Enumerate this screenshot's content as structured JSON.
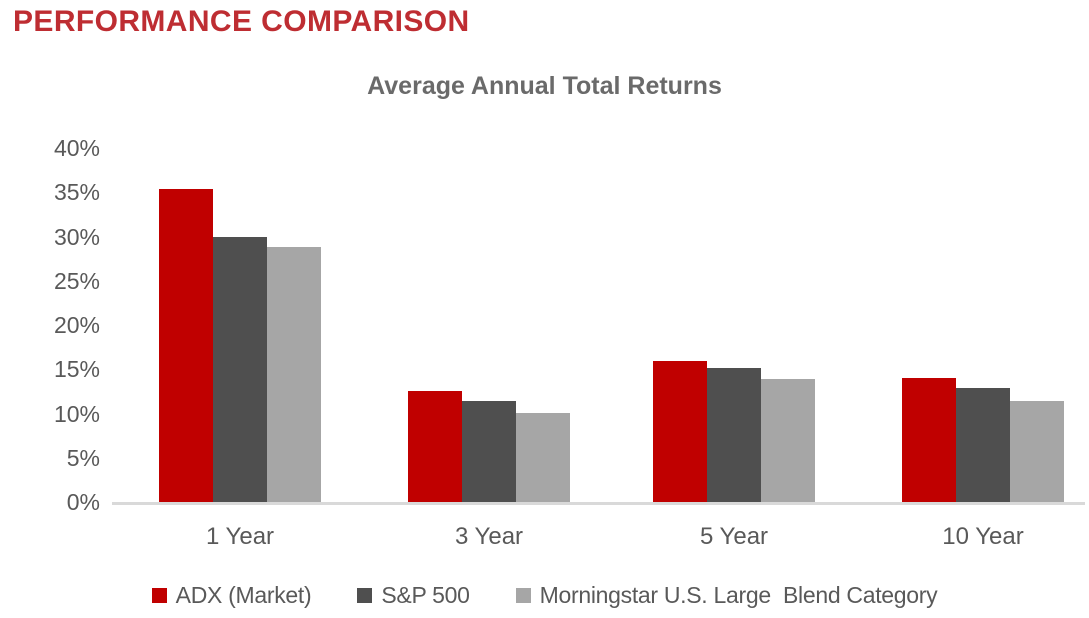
{
  "page": {
    "heading": "PERFORMANCE COMPARISON"
  },
  "colors": {
    "heading_red": "#be2d32",
    "bar_red": "#c00000",
    "bar_dark_gray": "#4f4f4f",
    "bar_light_gray": "#a6a6a6",
    "chart_title_gray": "#6a6a6a",
    "axis_text_gray": "#595959",
    "axis_line_gray": "#d9d9d9"
  },
  "chart_data": {
    "type": "bar",
    "title": "Average Annual Total Returns",
    "categories": [
      "1 Year",
      "3 Year",
      "5 Year",
      "10 Year"
    ],
    "series": [
      {
        "name": "ADX (Market)",
        "color": "#c00000",
        "values": [
          35.4,
          12.5,
          15.9,
          14.0
        ]
      },
      {
        "name": "S&P 500",
        "color": "#4f4f4f",
        "values": [
          29.9,
          11.4,
          15.1,
          12.9
        ]
      },
      {
        "name": "Morningstar U.S. Large  Blend Category",
        "color": "#a6a6a6",
        "values": [
          28.8,
          10.1,
          13.9,
          11.4
        ]
      }
    ],
    "ylabel": "",
    "xlabel": "",
    "ylim": [
      0,
      40
    ],
    "ytick_values": [
      0,
      5,
      10,
      15,
      20,
      25,
      30,
      35,
      40
    ],
    "ytick_labels": [
      "0%",
      "5%",
      "10%",
      "15%",
      "20%",
      "25%",
      "30%",
      "35%",
      "40%"
    ],
    "grid": false,
    "legend_position": "bottom"
  }
}
